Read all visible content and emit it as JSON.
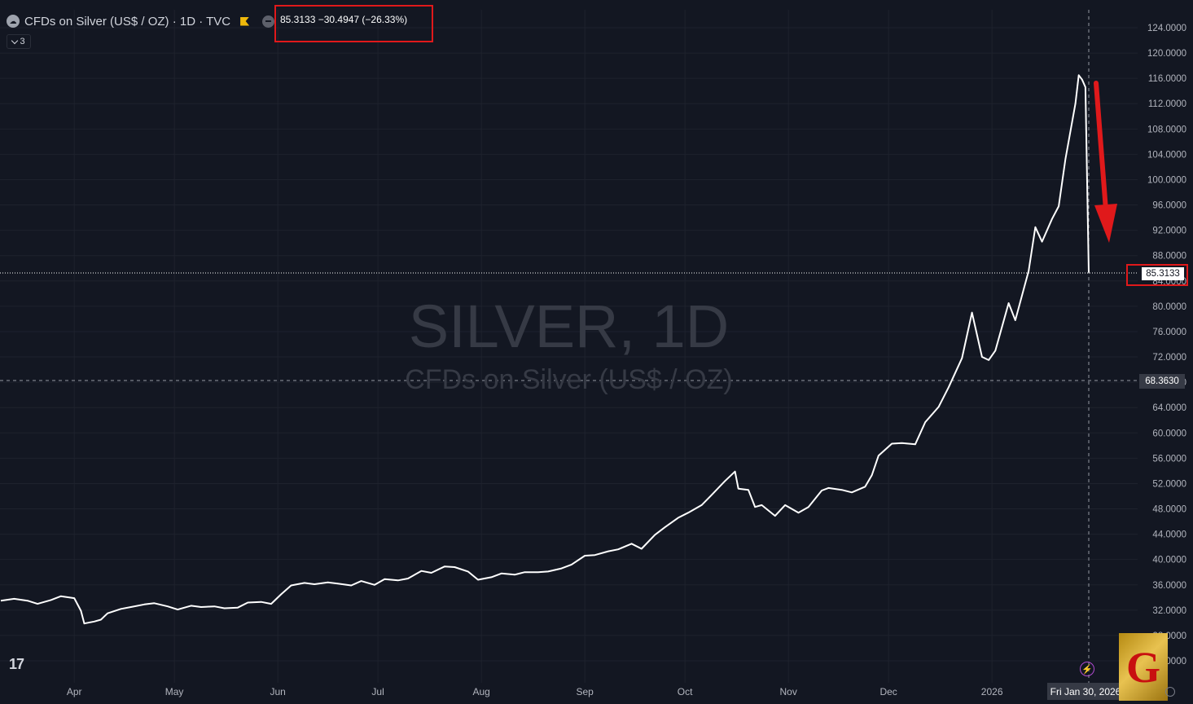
{
  "header": {
    "symbol_line": "CFDs on Silver (US$ / OZ) · 1D · TVC",
    "quote": "85.3133 −30.4947 (−26.33%)",
    "indicator_count": "3"
  },
  "watermark": {
    "title": "SILVER, 1D",
    "subtitle": "CFDs on Silver (US$ / OZ)"
  },
  "price_axis": {
    "last_price_label": "85.3133",
    "crosshair_label": "68.3630"
  },
  "time_axis": {
    "crosshair_date": "Fri Jan 30, 2026"
  },
  "branding": {
    "tv_logo": "17",
    "corner_logo_letter": "G"
  },
  "colors": {
    "background": "#131722",
    "line": "#ffffff",
    "annotation": "#e0191b",
    "grid": "#1e222d"
  },
  "chart_data": {
    "type": "line",
    "title": "SILVER, 1D",
    "x_tick_labels": [
      "Apr",
      "May",
      "Jun",
      "Jul",
      "Aug",
      "Sep",
      "Oct",
      "Nov",
      "Dec",
      "2026"
    ],
    "y_tick_labels": [
      "24.0000",
      "28.0000",
      "32.0000",
      "36.0000",
      "40.0000",
      "44.0000",
      "48.0000",
      "52.0000",
      "56.0000",
      "60.0000",
      "64.0000",
      "68.0000",
      "72.0000",
      "76.0000",
      "80.0000",
      "84.0000",
      "88.0000",
      "92.0000",
      "96.0000",
      "100.0000",
      "104.0000",
      "108.0000",
      "112.0000",
      "116.0000",
      "120.0000",
      "124.0000"
    ],
    "ylim": [
      22,
      126
    ],
    "y_scale": "linear",
    "grid": true,
    "last_value": 85.3133,
    "crosshair_value": 68.363,
    "series": [
      {
        "points": [
          [
            "2025-03-10",
            33.5
          ],
          [
            "2025-03-14",
            33.8
          ],
          [
            "2025-03-18",
            33.5
          ],
          [
            "2025-03-21",
            33.0
          ],
          [
            "2025-03-25",
            33.6
          ],
          [
            "2025-03-28",
            34.2
          ],
          [
            "2025-04-01",
            33.9
          ],
          [
            "2025-04-03",
            31.9
          ],
          [
            "2025-04-04",
            29.9
          ],
          [
            "2025-04-07",
            30.2
          ],
          [
            "2025-04-09",
            30.5
          ],
          [
            "2025-04-11",
            31.5
          ],
          [
            "2025-04-15",
            32.2
          ],
          [
            "2025-04-18",
            32.5
          ],
          [
            "2025-04-22",
            32.9
          ],
          [
            "2025-04-25",
            33.1
          ],
          [
            "2025-04-29",
            32.6
          ],
          [
            "2025-05-02",
            32.1
          ],
          [
            "2025-05-06",
            32.7
          ],
          [
            "2025-05-09",
            32.5
          ],
          [
            "2025-05-13",
            32.6
          ],
          [
            "2025-05-16",
            32.3
          ],
          [
            "2025-05-20",
            32.4
          ],
          [
            "2025-05-23",
            33.2
          ],
          [
            "2025-05-27",
            33.3
          ],
          [
            "2025-05-30",
            33.0
          ],
          [
            "2025-06-02",
            34.5
          ],
          [
            "2025-06-05",
            35.9
          ],
          [
            "2025-06-09",
            36.3
          ],
          [
            "2025-06-12",
            36.1
          ],
          [
            "2025-06-16",
            36.4
          ],
          [
            "2025-06-19",
            36.2
          ],
          [
            "2025-06-23",
            35.9
          ],
          [
            "2025-06-26",
            36.6
          ],
          [
            "2025-06-30",
            36.0
          ],
          [
            "2025-07-03",
            36.9
          ],
          [
            "2025-07-07",
            36.7
          ],
          [
            "2025-07-10",
            37.0
          ],
          [
            "2025-07-14",
            38.2
          ],
          [
            "2025-07-17",
            37.9
          ],
          [
            "2025-07-21",
            38.9
          ],
          [
            "2025-07-24",
            38.8
          ],
          [
            "2025-07-28",
            38.1
          ],
          [
            "2025-07-31",
            36.8
          ],
          [
            "2025-08-04",
            37.2
          ],
          [
            "2025-08-07",
            37.8
          ],
          [
            "2025-08-11",
            37.6
          ],
          [
            "2025-08-14",
            38.0
          ],
          [
            "2025-08-18",
            38.0
          ],
          [
            "2025-08-21",
            38.1
          ],
          [
            "2025-08-25",
            38.6
          ],
          [
            "2025-08-28",
            39.2
          ],
          [
            "2025-09-01",
            40.6
          ],
          [
            "2025-09-04",
            40.7
          ],
          [
            "2025-09-08",
            41.3
          ],
          [
            "2025-09-11",
            41.6
          ],
          [
            "2025-09-15",
            42.5
          ],
          [
            "2025-09-18",
            41.7
          ],
          [
            "2025-09-22",
            43.9
          ],
          [
            "2025-09-25",
            45.1
          ],
          [
            "2025-09-29",
            46.6
          ],
          [
            "2025-10-02",
            47.4
          ],
          [
            "2025-10-06",
            48.6
          ],
          [
            "2025-10-09",
            50.2
          ],
          [
            "2025-10-13",
            52.4
          ],
          [
            "2025-10-16",
            53.9
          ],
          [
            "2025-10-17",
            51.2
          ],
          [
            "2025-10-20",
            51.0
          ],
          [
            "2025-10-22",
            48.3
          ],
          [
            "2025-10-24",
            48.6
          ],
          [
            "2025-10-28",
            46.9
          ],
          [
            "2025-10-31",
            48.6
          ],
          [
            "2025-11-04",
            47.4
          ],
          [
            "2025-11-07",
            48.3
          ],
          [
            "2025-11-11",
            50.9
          ],
          [
            "2025-11-13",
            51.3
          ],
          [
            "2025-11-17",
            51.0
          ],
          [
            "2025-11-20",
            50.6
          ],
          [
            "2025-11-24",
            51.5
          ],
          [
            "2025-11-26",
            53.3
          ],
          [
            "2025-11-28",
            56.4
          ],
          [
            "2025-12-02",
            58.3
          ],
          [
            "2025-12-05",
            58.4
          ],
          [
            "2025-12-09",
            58.2
          ],
          [
            "2025-12-12",
            61.7
          ],
          [
            "2025-12-16",
            64.1
          ],
          [
            "2025-12-19",
            67.2
          ],
          [
            "2025-12-23",
            71.8
          ],
          [
            "2025-12-26",
            79.0
          ],
          [
            "2025-12-29",
            72.0
          ],
          [
            "2025-12-31",
            71.5
          ],
          [
            "2026-01-02",
            73.0
          ],
          [
            "2026-01-06",
            80.5
          ],
          [
            "2026-01-08",
            77.8
          ],
          [
            "2026-01-12",
            85.6
          ],
          [
            "2026-01-14",
            92.5
          ],
          [
            "2026-01-16",
            90.2
          ],
          [
            "2026-01-19",
            93.8
          ],
          [
            "2026-01-21",
            95.8
          ],
          [
            "2026-01-23",
            103.2
          ],
          [
            "2026-01-26",
            112.0
          ],
          [
            "2026-01-27",
            116.5
          ],
          [
            "2026-01-28",
            115.8
          ],
          [
            "2026-01-29",
            114.6
          ],
          [
            "2026-01-30",
            85.3133
          ]
        ]
      }
    ]
  }
}
